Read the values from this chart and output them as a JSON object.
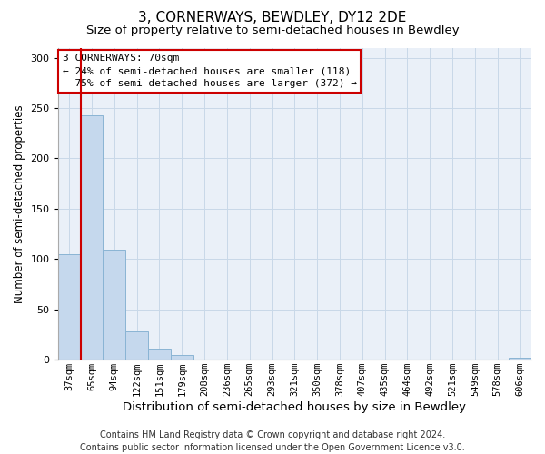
{
  "title": "3, CORNERWAYS, BEWDLEY, DY12 2DE",
  "subtitle": "Size of property relative to semi-detached houses in Bewdley",
  "xlabel": "Distribution of semi-detached houses by size in Bewdley",
  "ylabel": "Number of semi-detached properties",
  "bin_labels": [
    "37sqm",
    "65sqm",
    "94sqm",
    "122sqm",
    "151sqm",
    "179sqm",
    "208sqm",
    "236sqm",
    "265sqm",
    "293sqm",
    "321sqm",
    "350sqm",
    "378sqm",
    "407sqm",
    "435sqm",
    "464sqm",
    "492sqm",
    "521sqm",
    "549sqm",
    "578sqm",
    "606sqm"
  ],
  "bin_counts": [
    105,
    243,
    109,
    28,
    11,
    5,
    0,
    0,
    0,
    0,
    0,
    0,
    0,
    0,
    0,
    0,
    0,
    0,
    0,
    0,
    2
  ],
  "bar_color": "#c5d8ed",
  "bar_edge_color": "#8ab4d4",
  "property_line_x": 0.5,
  "smaller_pct": "24%",
  "smaller_count": 118,
  "larger_pct": "75%",
  "larger_count": 372,
  "property_sqm": "70sqm",
  "property_name": "3 CORNERWAYS",
  "ylim": [
    0,
    310
  ],
  "yticks": [
    0,
    50,
    100,
    150,
    200,
    250,
    300
  ],
  "annotation_box_facecolor": "#ffffff",
  "annotation_box_edgecolor": "#cc0000",
  "property_line_color": "#cc0000",
  "grid_color": "#c8d8e8",
  "plot_bg_color": "#eaf0f8",
  "fig_bg_color": "#ffffff",
  "title_fontsize": 11,
  "subtitle_fontsize": 9.5,
  "xlabel_fontsize": 9.5,
  "ylabel_fontsize": 8.5,
  "tick_fontsize": 7.5,
  "annotation_fontsize": 8,
  "footer_fontsize": 7,
  "footer_line1": "Contains HM Land Registry data © Crown copyright and database right 2024.",
  "footer_line2": "Contains public sector information licensed under the Open Government Licence v3.0."
}
